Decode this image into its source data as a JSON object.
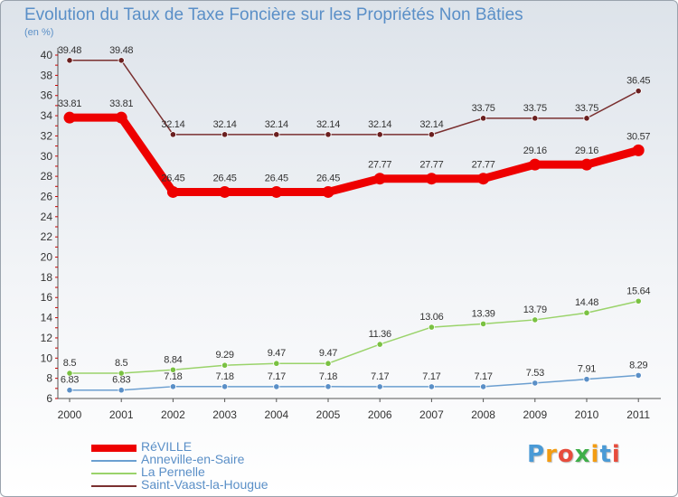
{
  "title": "Evolution du Taux de Taxe Foncière sur les Propriétés Non Bâties",
  "unit_label": "(en %)",
  "logo": {
    "text": "Proxiti",
    "colors": [
      "#4a9ad6",
      "#f39c12",
      "#e74c3c",
      "#3fae49",
      "#f39c12",
      "#4a9ad6",
      "#e74c3c"
    ]
  },
  "colors": {
    "title": "#5a8fc7",
    "axis": "#555555",
    "tick_marks": "#cc0000"
  },
  "chart_data": {
    "type": "line",
    "x": [
      "2000",
      "2001",
      "2002",
      "2003",
      "2004",
      "2005",
      "2006",
      "2007",
      "2008",
      "2009",
      "2010",
      "2011"
    ],
    "ylim": [
      6,
      40
    ],
    "yticks": [
      "6",
      "8",
      "10",
      "12",
      "14",
      "16",
      "18",
      "20",
      "22",
      "24",
      "26",
      "28",
      "30",
      "32",
      "34",
      "36",
      "38",
      "40"
    ],
    "grid": false,
    "legend_position": "bottom-left",
    "series": [
      {
        "name": "RéVILLE",
        "color": "#ee0000",
        "marker_color": "#ee0000",
        "emphasis": true,
        "values": [
          33.81,
          33.81,
          26.45,
          26.45,
          26.45,
          26.45,
          27.77,
          27.77,
          27.77,
          29.16,
          29.16,
          30.57
        ],
        "labels": [
          "33.81",
          "33.81",
          "26.45",
          "26.45",
          "26.45",
          "26.45",
          "27.77",
          "27.77",
          "27.77",
          "29.16",
          "29.16",
          "30.57"
        ]
      },
      {
        "name": "Anneville-en-Saire",
        "color": "#6b9fd0",
        "marker_color": "#5a8fc7",
        "emphasis": false,
        "values": [
          6.83,
          6.83,
          7.18,
          7.18,
          7.17,
          7.18,
          7.17,
          7.17,
          7.17,
          7.53,
          7.91,
          8.29
        ],
        "labels": [
          "6.83",
          "6.83",
          "7.18",
          "7.18",
          "7.17",
          "7.18",
          "7.17",
          "7.17",
          "7.17",
          "7.53",
          "7.91",
          "8.29"
        ]
      },
      {
        "name": "La Pernelle",
        "color": "#9ad36a",
        "marker_color": "#7ac142",
        "emphasis": false,
        "values": [
          8.5,
          8.5,
          8.84,
          9.29,
          9.47,
          9.47,
          11.36,
          13.06,
          13.39,
          13.79,
          14.48,
          15.64
        ],
        "labels": [
          "8.5",
          "8.5",
          "8.84",
          "9.29",
          "9.47",
          "9.47",
          "11.36",
          "13.06",
          "13.39",
          "13.79",
          "14.48",
          "15.64"
        ]
      },
      {
        "name": "Saint-Vaast-la-Hougue",
        "color": "#7a3030",
        "marker_color": "#6a1f1f",
        "emphasis": false,
        "values": [
          39.48,
          39.48,
          32.14,
          32.14,
          32.14,
          32.14,
          32.14,
          32.14,
          33.75,
          33.75,
          33.75,
          36.45
        ],
        "labels": [
          "39.48",
          "39.48",
          "32.14",
          "32.14",
          "32.14",
          "32.14",
          "32.14",
          "32.14",
          "33.75",
          "33.75",
          "33.75",
          "36.45"
        ]
      }
    ]
  }
}
